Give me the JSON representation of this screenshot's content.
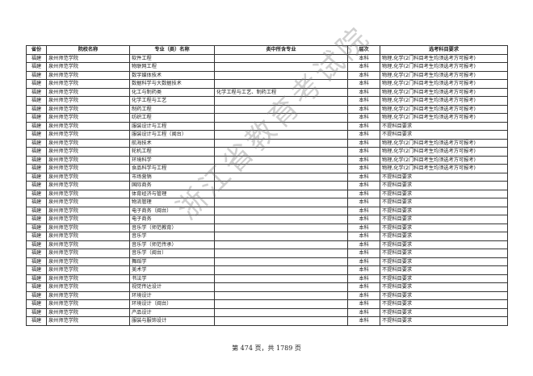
{
  "headers": [
    "省份",
    "院校名称",
    "专业（类）名称",
    "类中所含专业",
    "层次",
    "选考科目要求"
  ],
  "rows": [
    [
      "福建",
      "泉州师范学院",
      "软件工程",
      "",
      "本科",
      "物理,化学(2门科目考生均须选考方可报考)"
    ],
    [
      "福建",
      "泉州师范学院",
      "物联网工程",
      "",
      "本科",
      "物理,化学(2门科目考生均须选考方可报考)"
    ],
    [
      "福建",
      "泉州师范学院",
      "数字媒体技术",
      "",
      "本科",
      "物理,化学(2门科目考生均须选考方可报考)"
    ],
    [
      "福建",
      "泉州师范学院",
      "数据科学与大数据技术",
      "",
      "本科",
      "物理,化学(2门科目考生均须选考方可报考)"
    ],
    [
      "福建",
      "泉州师范学院",
      "化工与制药类",
      "化学工程与工艺、制药工程",
      "本科",
      "物理,化学(2门科目考生均须选考方可报考)"
    ],
    [
      "福建",
      "泉州师范学院",
      "化学工程与工艺",
      "",
      "本科",
      "物理,化学(2门科目考生均须选考方可报考)"
    ],
    [
      "福建",
      "泉州师范学院",
      "制药工程",
      "",
      "本科",
      "物理,化学(2门科目考生均须选考方可报考)"
    ],
    [
      "福建",
      "泉州师范学院",
      "纺织工程",
      "",
      "本科",
      "物理,化学(2门科目考生均须选考方可报考)"
    ],
    [
      "福建",
      "泉州师范学院",
      "服装设计与工程",
      "",
      "本科",
      "不提科目要求"
    ],
    [
      "福建",
      "泉州师范学院",
      "服装设计与工程（闽台）",
      "",
      "本科",
      "不提科目要求"
    ],
    [
      "福建",
      "泉州师范学院",
      "航海技术",
      "",
      "本科",
      "物理,化学(2门科目考生均须选考方可报考)"
    ],
    [
      "福建",
      "泉州师范学院",
      "轮机工程",
      "",
      "本科",
      "物理,化学(2门科目考生均须选考方可报考)"
    ],
    [
      "福建",
      "泉州师范学院",
      "环境科学",
      "",
      "本科",
      "物理,化学(2门科目考生均须选考方可报考)"
    ],
    [
      "福建",
      "泉州师范学院",
      "食品科学与工程",
      "",
      "本科",
      "物理,化学(2门科目考生均须选考方可报考)"
    ],
    [
      "福建",
      "泉州师范学院",
      "市场营销",
      "",
      "本科",
      "不提科目要求"
    ],
    [
      "福建",
      "泉州师范学院",
      "国际商务",
      "",
      "本科",
      "不提科目要求"
    ],
    [
      "福建",
      "泉州师范学院",
      "体育经济与管理",
      "",
      "本科",
      "不提科目要求"
    ],
    [
      "福建",
      "泉州师范学院",
      "物流管理",
      "",
      "本科",
      "不提科目要求"
    ],
    [
      "福建",
      "泉州师范学院",
      "电子商务（闽台）",
      "",
      "本科",
      "不提科目要求"
    ],
    [
      "福建",
      "泉州师范学院",
      "电子商务",
      "",
      "本科",
      "不提科目要求"
    ],
    [
      "福建",
      "泉州师范学院",
      "音乐学（师范教育）",
      "",
      "本科",
      "不提科目要求"
    ],
    [
      "福建",
      "泉州师范学院",
      "音乐学",
      "",
      "本科",
      "不提科目要求"
    ],
    [
      "福建",
      "泉州师范学院",
      "音乐学（师范传承）",
      "",
      "本科",
      "不提科目要求"
    ],
    [
      "福建",
      "泉州师范学院",
      "音乐学（闽台）",
      "",
      "本科",
      "不提科目要求"
    ],
    [
      "福建",
      "泉州师范学院",
      "舞蹈学",
      "",
      "本科",
      "不提科目要求"
    ],
    [
      "福建",
      "泉州师范学院",
      "美术学",
      "",
      "本科",
      "不提科目要求"
    ],
    [
      "福建",
      "泉州师范学院",
      "书法学",
      "",
      "本科",
      "不提科目要求"
    ],
    [
      "福建",
      "泉州师范学院",
      "视觉传达设计",
      "",
      "本科",
      "不提科目要求"
    ],
    [
      "福建",
      "泉州师范学院",
      "环境设计",
      "",
      "本科",
      "不提科目要求"
    ],
    [
      "福建",
      "泉州师范学院",
      "环境设计（闽台）",
      "",
      "本科",
      "不提科目要求"
    ],
    [
      "福建",
      "泉州师范学院",
      "产品设计",
      "",
      "本科",
      "不提科目要求"
    ],
    [
      "福建",
      "泉州师范学院",
      "服装与服饰设计",
      "",
      "本科",
      "不提科目要求"
    ]
  ],
  "watermark": "浙江省教育考试院",
  "footer": "第 474 页，共 1789 页"
}
